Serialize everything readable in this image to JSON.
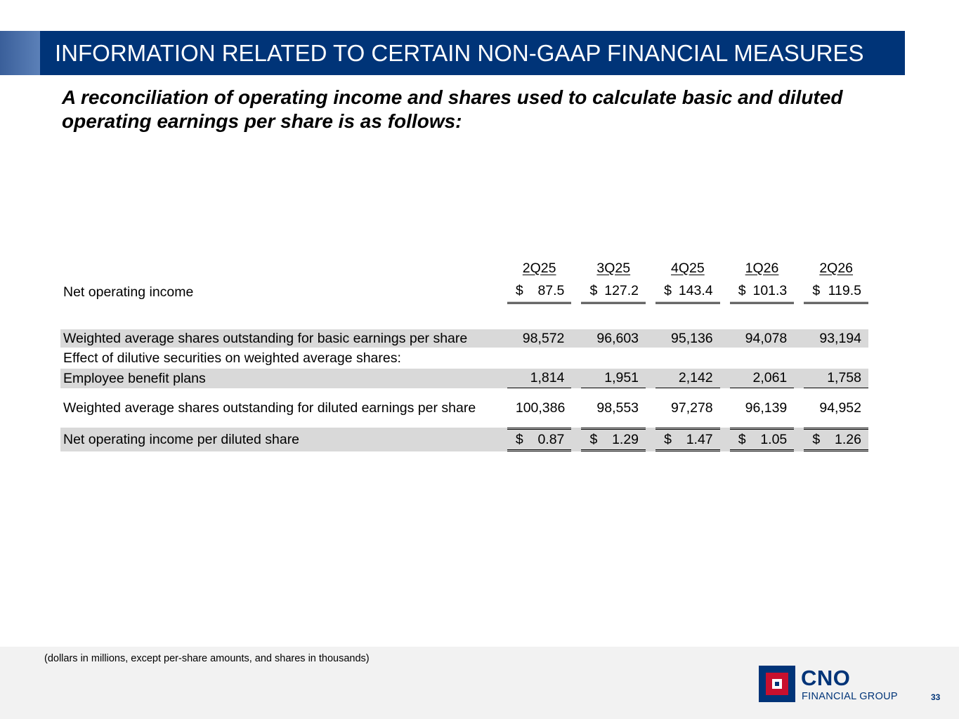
{
  "header": {
    "title": "INFORMATION RELATED TO CERTAIN NON-GAAP FINANCIAL MEASURES"
  },
  "subtitle": "A reconciliation of operating income and shares used to calculate basic and diluted operating earnings per share is as follows:",
  "table": {
    "columns": [
      "2Q25",
      "3Q25",
      "4Q25",
      "1Q26",
      "2Q26"
    ],
    "rows": {
      "net_operating_income": {
        "label": "Net operating income",
        "currency": "$",
        "values": [
          "87.5",
          "127.2",
          "143.4",
          "101.3",
          "119.5"
        ]
      },
      "basic_shares": {
        "label": "Weighted average shares outstanding for basic earnings per share",
        "values": [
          "98,572",
          "96,603",
          "95,136",
          "94,078",
          "93,194"
        ]
      },
      "dilutive_effect": {
        "label": "Effect of dilutive securities on weighted average shares:"
      },
      "employee_benefit": {
        "label": "Employee benefit plans",
        "values": [
          "1,814",
          "1,951",
          "2,142",
          "2,061",
          "1,758"
        ]
      },
      "diluted_shares": {
        "label": "Weighted average shares outstanding for diluted earnings per share",
        "values": [
          "100,386",
          "98,553",
          "97,278",
          "96,139",
          "94,952"
        ]
      },
      "eps": {
        "label": "Net operating income per diluted share",
        "currency": "$",
        "values": [
          "0.87",
          "1.29",
          "1.47",
          "1.05",
          "1.26"
        ]
      }
    }
  },
  "footer": {
    "note": "(dollars in millions, except per-share amounts, and shares in thousands)",
    "logo_name": "CNO",
    "logo_sub": "FINANCIAL GROUP",
    "page_number": "33"
  },
  "colors": {
    "brand_navy": "#003478",
    "brand_red": "#c8102e",
    "row_shade": "#d9d9d9"
  }
}
